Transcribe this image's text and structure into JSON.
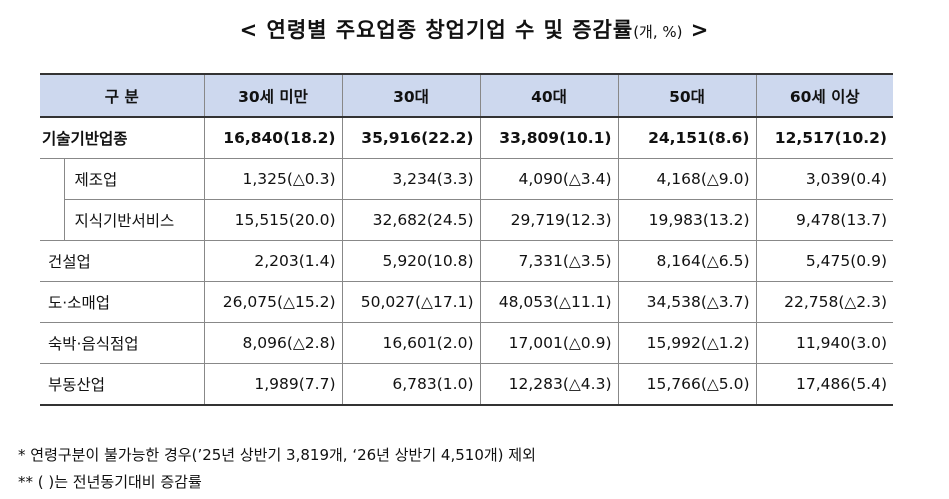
{
  "title": {
    "main": "< 연령별 주요업종 창업기업 수 및 증감률",
    "unit": "(개, %)",
    "close": ">"
  },
  "header": {
    "category": "구 분",
    "ages": [
      "30세 미만",
      "30대",
      "40대",
      "50대",
      "60세 이상"
    ]
  },
  "rows": [
    {
      "label": "기술기반업종",
      "values": [
        "16,840(18.2)",
        "35,916(22.2)",
        "33,809(10.1)",
        "24,151(8.6)",
        "12,517(10.2)"
      ]
    },
    {
      "label": "제조업",
      "values": [
        "1,325(△0.3)",
        "3,234(3.3)",
        "4,090(△3.4)",
        "4,168(△9.0)",
        "3,039(0.4)"
      ]
    },
    {
      "label": "지식기반서비스",
      "values": [
        "15,515(20.0)",
        "32,682(24.5)",
        "29,719(12.3)",
        "19,983(13.2)",
        "9,478(13.7)"
      ]
    },
    {
      "label": "건설업",
      "values": [
        "2,203(1.4)",
        "5,920(10.8)",
        "7,331(△3.5)",
        "8,164(△6.5)",
        "5,475(0.9)"
      ]
    },
    {
      "label": "도·소매업",
      "values": [
        "26,075(△15.2)",
        "50,027(△17.1)",
        "48,053(△11.1)",
        "34,538(△3.7)",
        "22,758(△2.3)"
      ]
    },
    {
      "label": "숙박·음식점업",
      "values": [
        "8,096(△2.8)",
        "16,601(2.0)",
        "17,001(△0.9)",
        "15,992(△1.2)",
        "11,940(3.0)"
      ]
    },
    {
      "label": "부동산업",
      "values": [
        "1,989(7.7)",
        "6,783(1.0)",
        "12,283(△4.3)",
        "15,766(△5.0)",
        "17,486(5.4)"
      ]
    }
  ],
  "footnotes": [
    "*  연령구분이 불가능한 경우(’25년 상반기 3,819개, ‘26년 상반기 4,510개) 제외",
    "**  (    )는 전년동기대비 증감률"
  ]
}
